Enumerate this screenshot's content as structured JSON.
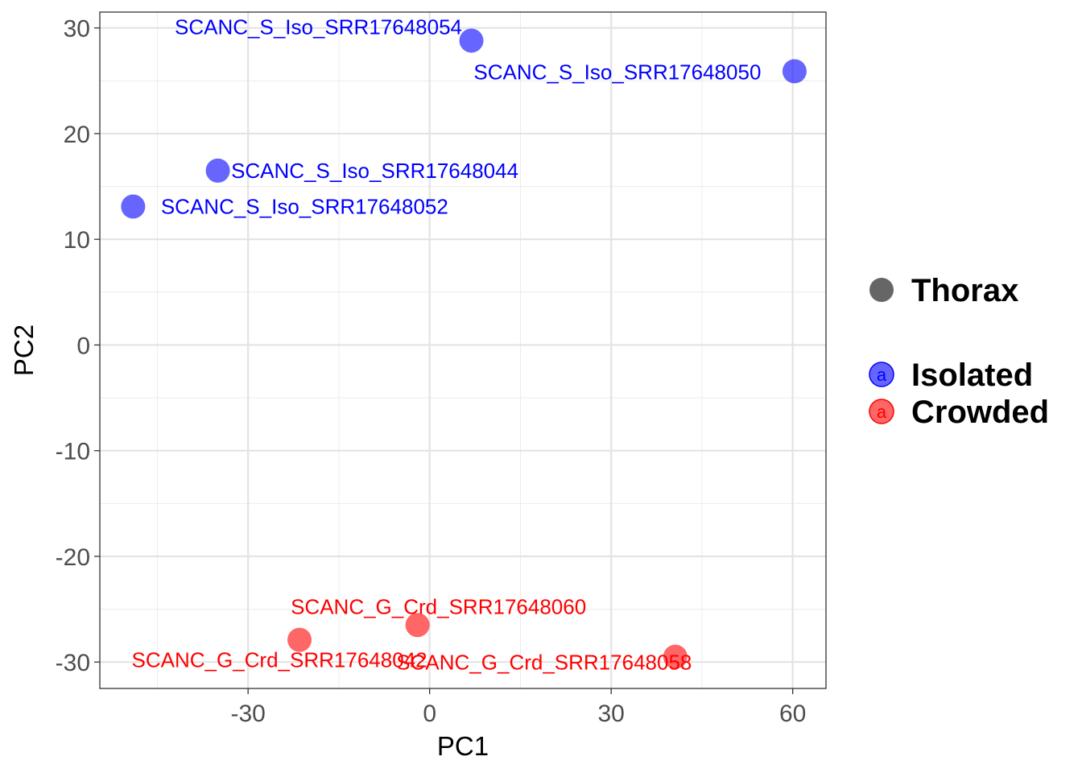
{
  "chart_data": {
    "type": "scatter",
    "xlabel": "PC1",
    "ylabel": "PC2",
    "xlim": [
      -54.5,
      65.5
    ],
    "ylim": [
      -32.5,
      31.5
    ],
    "x_ticks": [
      -30,
      0,
      30,
      60
    ],
    "x_tick_labels": [
      "-30",
      "0",
      "30",
      "60"
    ],
    "y_ticks": [
      -30,
      -20,
      -10,
      0,
      10,
      20,
      30
    ],
    "y_tick_labels": [
      "-30",
      "-20",
      "-10",
      "0",
      "10",
      "20",
      "30"
    ],
    "grid": true,
    "legend": {
      "placement": "right",
      "shape_title": "Thorax",
      "shape_color": "#666666",
      "entries": [
        {
          "label": "Isolated",
          "color": "#0000ff",
          "key_glyph": "a"
        },
        {
          "label": "Crowded",
          "color": "#ff0000",
          "key_glyph": "a"
        }
      ]
    },
    "series": [
      {
        "name": "Isolated",
        "color": "#0000ff",
        "points": [
          {
            "label": "SCANC_S_Iso_SRR17648054",
            "x": 6.9,
            "y": 28.8
          },
          {
            "label": "SCANC_S_Iso_SRR17648050",
            "x": 60.3,
            "y": 25.9
          },
          {
            "label": "SCANC_S_Iso_SRR17648044",
            "x": -35.0,
            "y": 16.5
          },
          {
            "label": "SCANC_S_Iso_SRR17648052",
            "x": -49.0,
            "y": 13.1
          }
        ]
      },
      {
        "name": "Crowded",
        "color": "#ff0000",
        "points": [
          {
            "label": "SCANC_G_Crd_SRR17648060",
            "x": -2.0,
            "y": -26.5
          },
          {
            "label": "SCANC_G_Crd_SRR17648042",
            "x": -21.5,
            "y": -27.9
          },
          {
            "label": "SCANC_G_Crd_SRR17648058",
            "x": 40.6,
            "y": -29.5
          }
        ]
      }
    ]
  }
}
